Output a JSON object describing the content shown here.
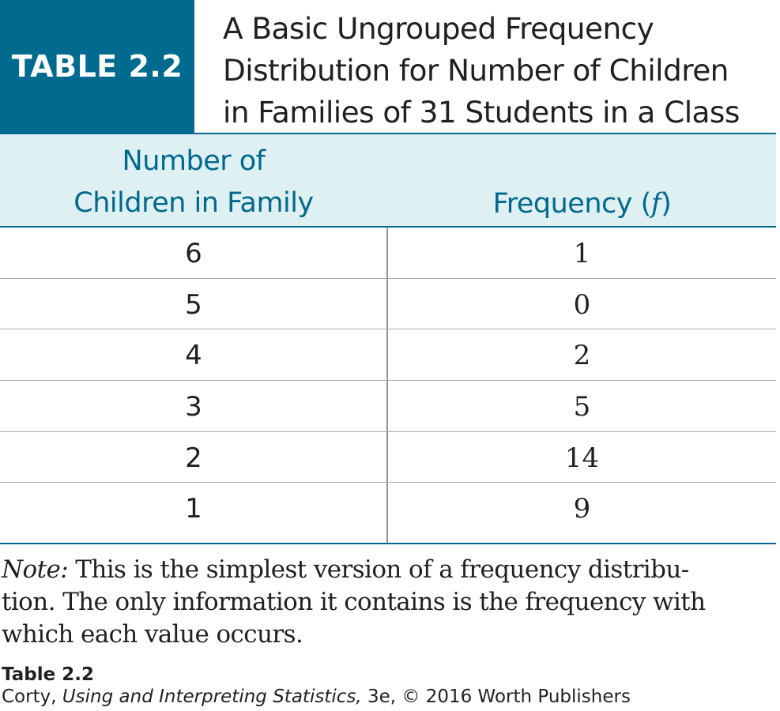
{
  "header": {
    "label": "TABLE 2.2",
    "title_lines": [
      "A Basic Ungrouped Frequency",
      "Distribution for Number of Children",
      "in Families of 31 Students in a Class"
    ]
  },
  "table": {
    "columns": {
      "col1_line1": "Number of",
      "col1_line2": "Children in Family",
      "col2_prefix": "Frequency (",
      "col2_symbol": "f",
      "col2_suffix": ")"
    },
    "rows": [
      {
        "children": "6",
        "frequency": "1"
      },
      {
        "children": "5",
        "frequency": "0"
      },
      {
        "children": "4",
        "frequency": "2"
      },
      {
        "children": "3",
        "frequency": "5"
      },
      {
        "children": "2",
        "frequency": "14"
      },
      {
        "children": "1",
        "frequency": "9"
      }
    ]
  },
  "note": {
    "label": "Note:",
    "lines": [
      " This is the simplest version of a frequency distribu-",
      "tion. The only information it contains is the frequency with",
      "which each value occurs."
    ]
  },
  "caption": {
    "title": "Table 2.2",
    "author": "Corty, ",
    "book": "Using and Interpreting Statistics,",
    "edition": " 3e, © 2016 Worth Publishers"
  },
  "colors": {
    "accent": "#006b8f",
    "header_bg": "#dff0f3",
    "header_text": "#00698c"
  }
}
